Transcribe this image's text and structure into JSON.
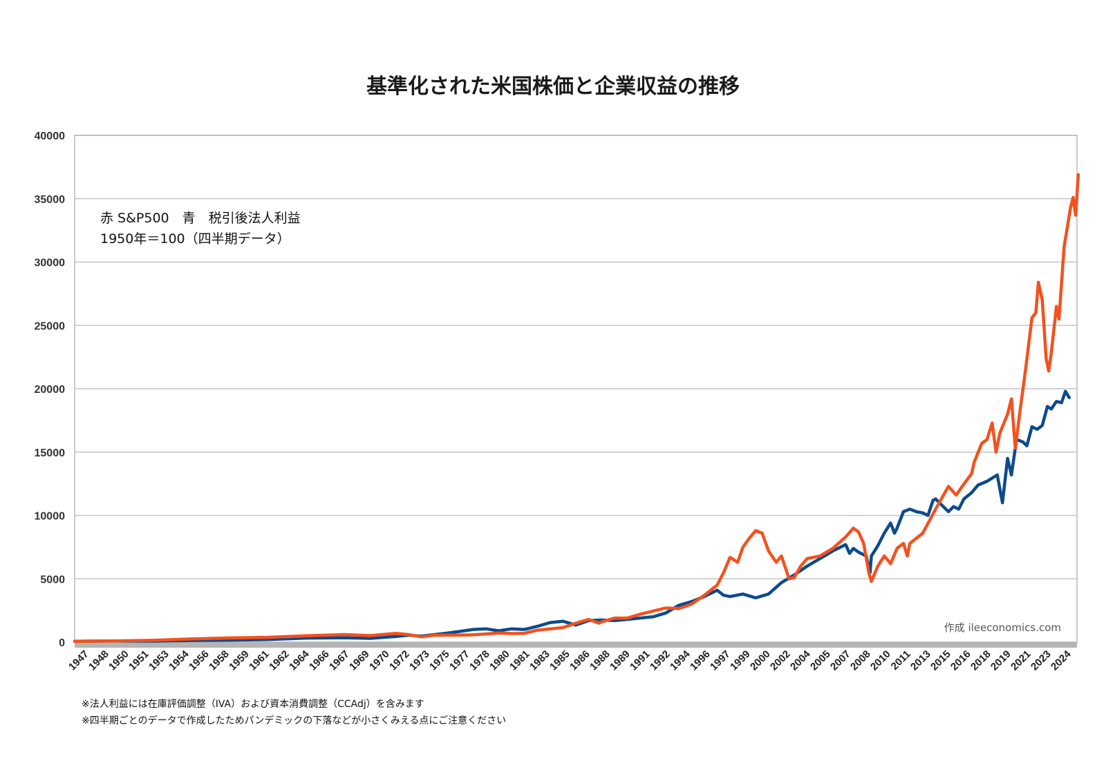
{
  "chart_data": {
    "type": "line",
    "title": "基準化された米国株価と企業収益の推移",
    "annotations": [
      "赤 S&P500　青　税引後法人利益",
      "1950年＝100（四半期データ）"
    ],
    "credit": "作成 ileeconomics.com",
    "notes": [
      "※法人利益には在庫評価調整（IVA）および資本消費調整（CCAdj）を含みます",
      "※四半期ごとのデータで作成したためパンデミックの下落などが小さくみえる点にご注意ください"
    ],
    "ylim": [
      0,
      40000
    ],
    "yticks": [
      0,
      5000,
      10000,
      15000,
      20000,
      25000,
      30000,
      35000,
      40000
    ],
    "xlim": [
      1947,
      2025
    ],
    "xtick_labels": [
      "1947",
      "1948",
      "1950",
      "1951",
      "1953",
      "1954",
      "1956",
      "1958",
      "1959",
      "1961",
      "1962",
      "1964",
      "1966",
      "1967",
      "1969",
      "1970",
      "1972",
      "1973",
      "1975",
      "1977",
      "1978",
      "1980",
      "1981",
      "1983",
      "1985",
      "1986",
      "1988",
      "1989",
      "1991",
      "1992",
      "1994",
      "1996",
      "1997",
      "1999",
      "2000",
      "2002",
      "2004",
      "2005",
      "2007",
      "2008",
      "2010",
      "2011",
      "2013",
      "2015",
      "2016",
      "2018",
      "2019",
      "2021",
      "2023",
      "2024"
    ],
    "grid": true,
    "series": [
      {
        "name": "S&P500",
        "color": "#f4511e",
        "points": [
          [
            1947,
            60
          ],
          [
            1950,
            100
          ],
          [
            1953,
            140
          ],
          [
            1956,
            250
          ],
          [
            1959,
            330
          ],
          [
            1962,
            380
          ],
          [
            1965,
            500
          ],
          [
            1968,
            600
          ],
          [
            1970,
            520
          ],
          [
            1972,
            700
          ],
          [
            1973,
            600
          ],
          [
            1974,
            420
          ],
          [
            1975,
            550
          ],
          [
            1977,
            560
          ],
          [
            1978,
            580
          ],
          [
            1980,
            720
          ],
          [
            1981,
            680
          ],
          [
            1982,
            700
          ],
          [
            1983,
            950
          ],
          [
            1985,
            1150
          ],
          [
            1986,
            1500
          ],
          [
            1987,
            1800
          ],
          [
            1987.8,
            1500
          ],
          [
            1988,
            1600
          ],
          [
            1989,
            1900
          ],
          [
            1990,
            1900
          ],
          [
            1991,
            2200
          ],
          [
            1992,
            2450
          ],
          [
            1993,
            2700
          ],
          [
            1994,
            2650
          ],
          [
            1995,
            3000
          ],
          [
            1996,
            3700
          ],
          [
            1997,
            4500
          ],
          [
            1997.5,
            5500
          ],
          [
            1998,
            6700
          ],
          [
            1998.6,
            6300
          ],
          [
            1999,
            7500
          ],
          [
            1999.5,
            8200
          ],
          [
            2000,
            8800
          ],
          [
            2000.5,
            8600
          ],
          [
            2001,
            7200
          ],
          [
            2001.6,
            6300
          ],
          [
            2002,
            6800
          ],
          [
            2002.6,
            5000
          ],
          [
            2003,
            5100
          ],
          [
            2003.5,
            6000
          ],
          [
            2004,
            6600
          ],
          [
            2005,
            6800
          ],
          [
            2006,
            7400
          ],
          [
            2007,
            8300
          ],
          [
            2007.6,
            9000
          ],
          [
            2008,
            8700
          ],
          [
            2008.4,
            7800
          ],
          [
            2008.8,
            5500
          ],
          [
            2009,
            4800
          ],
          [
            2009.5,
            6000
          ],
          [
            2010,
            6800
          ],
          [
            2010.5,
            6200
          ],
          [
            2011,
            7400
          ],
          [
            2011.5,
            7800
          ],
          [
            2011.8,
            6800
          ],
          [
            2012,
            7800
          ],
          [
            2013,
            8600
          ],
          [
            2014,
            10500
          ],
          [
            2015,
            12300
          ],
          [
            2015.6,
            11600
          ],
          [
            2016,
            12200
          ],
          [
            2016.8,
            13300
          ],
          [
            2017,
            14200
          ],
          [
            2017.6,
            15700
          ],
          [
            2018,
            16000
          ],
          [
            2018.4,
            17300
          ],
          [
            2018.7,
            15000
          ],
          [
            2019,
            16500
          ],
          [
            2019.6,
            18000
          ],
          [
            2019.9,
            19200
          ],
          [
            2020.2,
            15300
          ],
          [
            2020.6,
            18500
          ],
          [
            2021,
            21500
          ],
          [
            2021.5,
            25600
          ],
          [
            2021.8,
            26000
          ],
          [
            2022,
            28400
          ],
          [
            2022.3,
            27000
          ],
          [
            2022.6,
            22400
          ],
          [
            2022.8,
            21400
          ],
          [
            2023,
            22800
          ],
          [
            2023.4,
            26500
          ],
          [
            2023.6,
            25500
          ],
          [
            2024,
            31200
          ],
          [
            2024.5,
            34300
          ],
          [
            2024.7,
            35100
          ],
          [
            2024.9,
            33700
          ],
          [
            2025.1,
            36900
          ]
        ]
      },
      {
        "name": "税引後法人利益",
        "color": "#0d4a8c",
        "points": [
          [
            1947,
            70
          ],
          [
            1950,
            100
          ],
          [
            1953,
            80
          ],
          [
            1956,
            130
          ],
          [
            1959,
            160
          ],
          [
            1962,
            200
          ],
          [
            1965,
            320
          ],
          [
            1968,
            350
          ],
          [
            1970,
            300
          ],
          [
            1972,
            450
          ],
          [
            1973,
            550
          ],
          [
            1974,
            480
          ],
          [
            1975,
            600
          ],
          [
            1976,
            720
          ],
          [
            1977,
            850
          ],
          [
            1978,
            1000
          ],
          [
            1979,
            1050
          ],
          [
            1980,
            900
          ],
          [
            1981,
            1050
          ],
          [
            1982,
            1000
          ],
          [
            1983,
            1250
          ],
          [
            1984,
            1550
          ],
          [
            1985,
            1650
          ],
          [
            1986,
            1350
          ],
          [
            1987,
            1700
          ],
          [
            1988,
            1750
          ],
          [
            1989,
            1700
          ],
          [
            1990,
            1800
          ],
          [
            1991,
            1900
          ],
          [
            1992,
            2000
          ],
          [
            1993,
            2300
          ],
          [
            1994,
            2900
          ],
          [
            1995,
            3200
          ],
          [
            1996,
            3600
          ],
          [
            1997,
            4100
          ],
          [
            1997.5,
            3700
          ],
          [
            1998,
            3600
          ],
          [
            1999,
            3800
          ],
          [
            2000,
            3500
          ],
          [
            2001,
            3800
          ],
          [
            2002,
            4700
          ],
          [
            2003,
            5300
          ],
          [
            2004,
            6000
          ],
          [
            2005,
            6600
          ],
          [
            2006,
            7200
          ],
          [
            2007,
            7700
          ],
          [
            2007.3,
            7000
          ],
          [
            2007.6,
            7400
          ],
          [
            2008,
            7100
          ],
          [
            2008.6,
            6800
          ],
          [
            2008.9,
            5500
          ],
          [
            2009,
            6800
          ],
          [
            2009.5,
            7600
          ],
          [
            2010,
            8600
          ],
          [
            2010.5,
            9400
          ],
          [
            2010.8,
            8600
          ],
          [
            2011,
            9000
          ],
          [
            2011.5,
            10300
          ],
          [
            2012,
            10500
          ],
          [
            2012.5,
            10300
          ],
          [
            2013,
            10200
          ],
          [
            2013.4,
            10000
          ],
          [
            2013.8,
            11200
          ],
          [
            2014,
            11300
          ],
          [
            2014.5,
            10800
          ],
          [
            2015,
            10300
          ],
          [
            2015.4,
            10700
          ],
          [
            2015.8,
            10500
          ],
          [
            2016.2,
            11300
          ],
          [
            2016.8,
            11800
          ],
          [
            2017.3,
            12400
          ],
          [
            2018,
            12700
          ],
          [
            2018.8,
            13200
          ],
          [
            2019.2,
            11000
          ],
          [
            2019.6,
            14500
          ],
          [
            2019.9,
            13200
          ],
          [
            2020.3,
            16000
          ],
          [
            2020.8,
            15800
          ],
          [
            2021.1,
            15500
          ],
          [
            2021.5,
            17000
          ],
          [
            2021.9,
            16800
          ],
          [
            2022.3,
            17100
          ],
          [
            2022.7,
            18600
          ],
          [
            2023,
            18400
          ],
          [
            2023.4,
            19000
          ],
          [
            2023.8,
            18900
          ],
          [
            2024.1,
            19800
          ],
          [
            2024.4,
            19300
          ]
        ]
      }
    ]
  }
}
